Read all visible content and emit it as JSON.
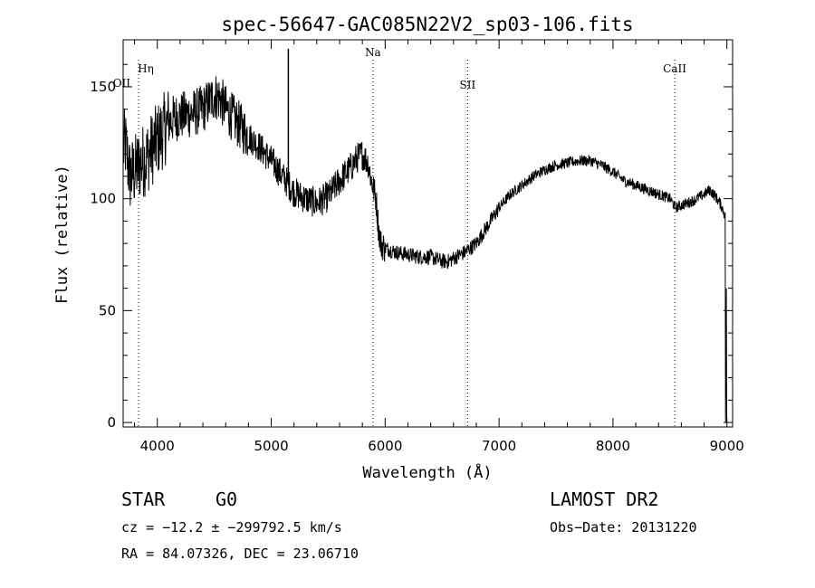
{
  "chart_data": {
    "type": "line",
    "title": "spec-56647-GAC085N22V2_sp03-106.fits",
    "xlabel": "Wavelength (Å)",
    "ylabel": "Flux (relative)",
    "xlim": [
      3700,
      9050
    ],
    "ylim": [
      -2,
      171
    ],
    "xticks": [
      "4000",
      "5000",
      "6000",
      "7000",
      "8000",
      "9000"
    ],
    "yticks": [
      "0",
      "50",
      "100",
      "150"
    ],
    "grid": false,
    "legend": "none",
    "line_color": "#000000",
    "spectrum_anchors": {
      "x": [
        3700,
        3720,
        3760,
        3800,
        3850,
        3900,
        3950,
        4000,
        4050,
        4100,
        4150,
        4200,
        4300,
        4400,
        4500,
        4550,
        4600,
        4700,
        4800,
        4900,
        5000,
        5100,
        5200,
        5300,
        5400,
        5500,
        5600,
        5700,
        5750,
        5800,
        5850,
        5880,
        5920,
        5940,
        5960,
        6000,
        6100,
        6200,
        6300,
        6400,
        6500,
        6560,
        6620,
        6700,
        6800,
        6900,
        7000,
        7100,
        7200,
        7300,
        7400,
        7500,
        7600,
        7700,
        7800,
        7900,
        8000,
        8100,
        8200,
        8300,
        8400,
        8500,
        8550,
        8600,
        8700,
        8800,
        8850,
        8900,
        8950,
        8980,
        9000
      ],
      "y": [
        122,
        124,
        110,
        112,
        116,
        118,
        122,
        126,
        130,
        134,
        136,
        137,
        138,
        140,
        146,
        145,
        140,
        134,
        128,
        123,
        117,
        110,
        103,
        100,
        98,
        101,
        108,
        114,
        118,
        120,
        116,
        108,
        100,
        88,
        80,
        78,
        76,
        75,
        74,
        74,
        72,
        72,
        74,
        76,
        80,
        88,
        96,
        102,
        106,
        110,
        113,
        115,
        116,
        117,
        117,
        115,
        112,
        108,
        106,
        104,
        102,
        100,
        96,
        97,
        99,
        102,
        104,
        101,
        97,
        93,
        89
      ]
    },
    "spike": {
      "x": 5150,
      "y": 167
    },
    "lines": [
      {
        "label": "Hη",
        "x": 3835
      },
      {
        "label": "OII",
        "x": 3727
      },
      {
        "label": "Na",
        "x": 5893
      },
      {
        "label": "SII",
        "x": 6724
      },
      {
        "label": "CaII",
        "x": 8542
      }
    ]
  },
  "footer": {
    "object_class": "STAR",
    "subclass": "G0",
    "survey": "LAMOST DR2",
    "cz": "cz = −12.2 ± −299792.5 km/s",
    "obs_date": "Obs−Date: 20131220",
    "coords": "RA =  84.07326, DEC =  23.06710"
  }
}
